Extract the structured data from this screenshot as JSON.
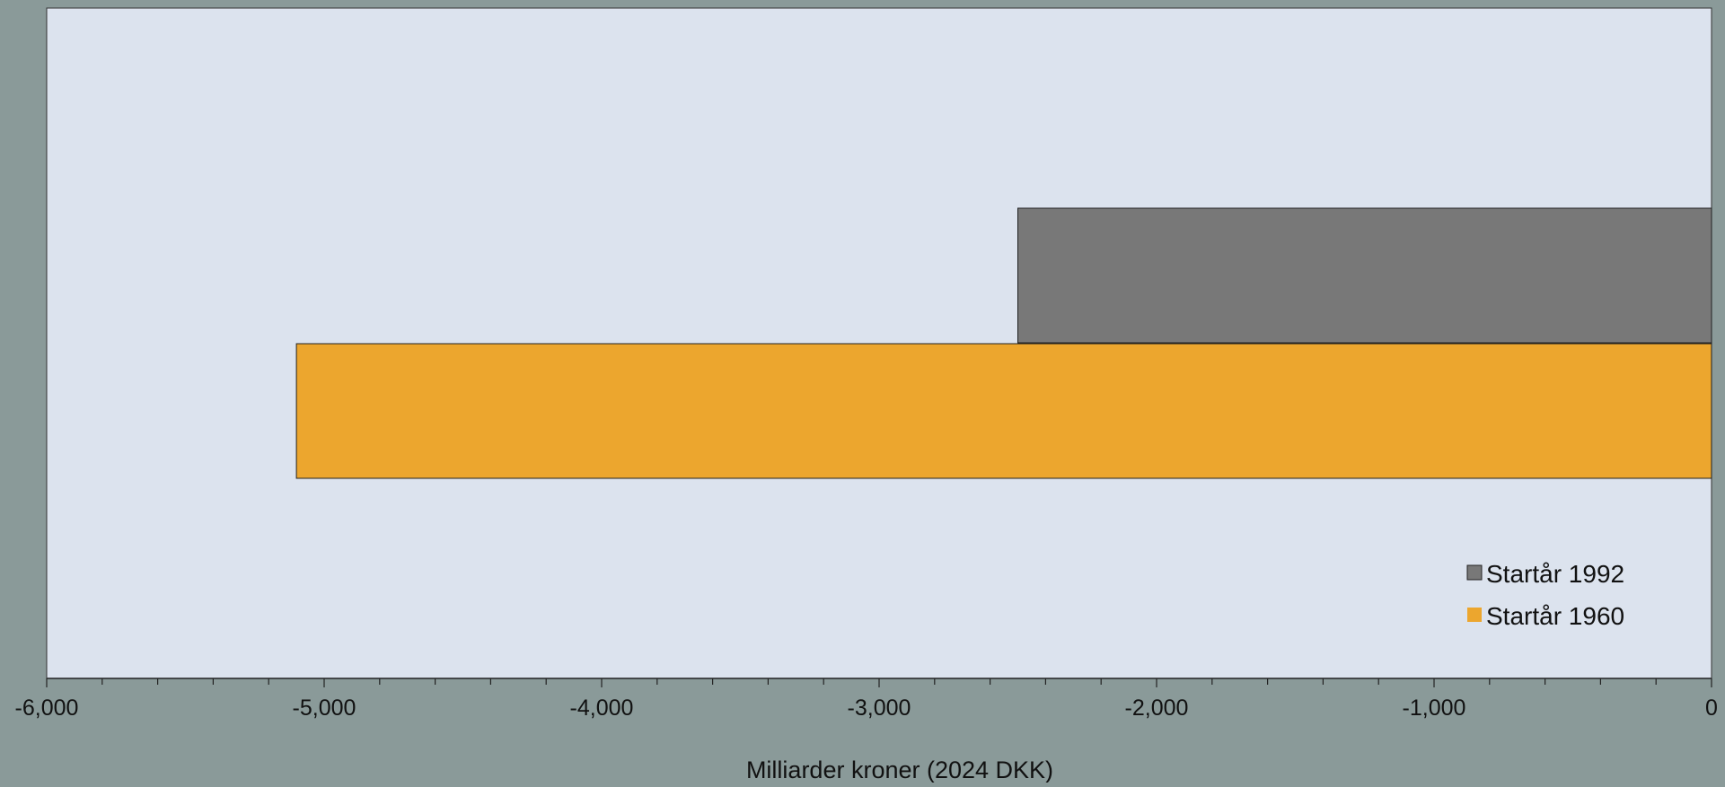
{
  "chart_data": {
    "type": "bar",
    "orientation": "horizontal",
    "title": "",
    "xlabel": "Milliarder kroner (2024 DKK)",
    "ylabel": "",
    "xlim": [
      -6000,
      0
    ],
    "x_ticks": [
      -6000,
      -5000,
      -4000,
      -3000,
      -2000,
      -1000,
      0
    ],
    "x_tick_labels": [
      "-6,000",
      "-5,000",
      "-4,000",
      "-3,000",
      "-2,000",
      "-1,000",
      "0"
    ],
    "minor_tick_step": 200,
    "grid": false,
    "legend_position": "bottom-right",
    "series": [
      {
        "name": "Startår 1992",
        "values": [
          -2500
        ],
        "color": "#787878"
      },
      {
        "name": "Startår 1960",
        "values": [
          -5100
        ],
        "color": "#eca62e"
      }
    ]
  },
  "colors": {
    "page_background": "#8a9a99",
    "plot_background": "#dce3ee",
    "bar_border": "#222222",
    "axis": "#222222"
  }
}
